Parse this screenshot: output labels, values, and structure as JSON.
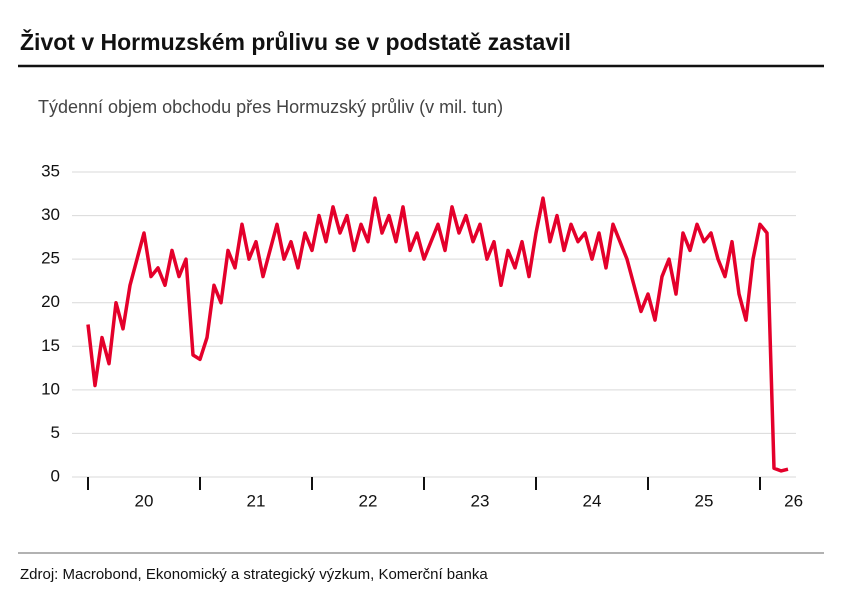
{
  "chart_data": {
    "type": "line",
    "title": "Život v Hormuzském průlivu se v podstatě zastavil",
    "subtitle": "Týdenní objem obchodu přes Hormuzský průliv (v mil. tun)",
    "source": "Zdroj: Macrobond, Ekonomický a strategický výzkum, Komerční banka",
    "x": [
      2020,
      2020.0625,
      2020.125,
      2020.1875,
      2020.25,
      2020.3125,
      2020.375,
      2020.4375,
      2020.5,
      2020.5625,
      2020.625,
      2020.6875,
      2020.75,
      2020.8125,
      2020.875,
      2020.9375,
      2021,
      2021.0625,
      2021.125,
      2021.1875,
      2021.25,
      2021.3125,
      2021.375,
      2021.4375,
      2021.5,
      2021.5625,
      2021.625,
      2021.6875,
      2021.75,
      2021.8125,
      2021.875,
      2021.9375,
      2022,
      2022.0625,
      2022.125,
      2022.1875,
      2022.25,
      2022.3125,
      2022.375,
      2022.4375,
      2022.5,
      2022.5625,
      2022.625,
      2022.6875,
      2022.75,
      2022.8125,
      2022.875,
      2022.9375,
      2023,
      2023.0625,
      2023.125,
      2023.1875,
      2023.25,
      2023.3125,
      2023.375,
      2023.4375,
      2023.5,
      2023.5625,
      2023.625,
      2023.6875,
      2023.75,
      2023.8125,
      2023.875,
      2023.9375,
      2024,
      2024.0625,
      2024.125,
      2024.1875,
      2024.25,
      2024.3125,
      2024.375,
      2024.4375,
      2024.5,
      2024.5625,
      2024.625,
      2024.6875,
      2024.75,
      2024.8125,
      2024.875,
      2024.9375,
      2025,
      2025.0625,
      2025.125,
      2025.1875,
      2025.25,
      2025.3125,
      2025.375,
      2025.4375,
      2025.5,
      2025.5625,
      2025.625,
      2025.6875,
      2025.75,
      2025.8125,
      2025.875,
      2025.9375,
      2026,
      2026.0625,
      2026.125,
      2026.1875,
      2026.25
    ],
    "series": [
      {
        "color": "#e4002b",
        "values": [
          17.5,
          10.5,
          16,
          13,
          20,
          17,
          22,
          25,
          28,
          23,
          24,
          22,
          26,
          23,
          25,
          14,
          13.5,
          16,
          22,
          20,
          26,
          24,
          29,
          25,
          27,
          23,
          26,
          29,
          25,
          27,
          24,
          28,
          26,
          30,
          27,
          31,
          28,
          30,
          26,
          29,
          27,
          32,
          28,
          30,
          27,
          31,
          26,
          28,
          25,
          27,
          29,
          26,
          31,
          28,
          30,
          27,
          29,
          25,
          27,
          22,
          26,
          24,
          27,
          23,
          28,
          32,
          27,
          30,
          26,
          29,
          27,
          28,
          25,
          28,
          24,
          29,
          27,
          25,
          22,
          19,
          21,
          18,
          23,
          25,
          21,
          28,
          26,
          29,
          27,
          28,
          25,
          23,
          27,
          21,
          18,
          25,
          29,
          28,
          1,
          0.7,
          0.9
        ]
      }
    ],
    "xlim": [
      2020,
      2026.5
    ],
    "xtick_marks": [
      2020,
      2021,
      2022,
      2023,
      2024,
      2025,
      2026
    ],
    "xticks": [
      {
        "value": 2020.5,
        "label": "20"
      },
      {
        "value": 2021.5,
        "label": "21"
      },
      {
        "value": 2022.5,
        "label": "22"
      },
      {
        "value": 2023.5,
        "label": "23"
      },
      {
        "value": 2024.5,
        "label": "24"
      },
      {
        "value": 2025.5,
        "label": "25"
      },
      {
        "value": 2026.3,
        "label": "26"
      }
    ],
    "ylim": [
      0,
      35
    ],
    "yticks": [
      0,
      5,
      10,
      15,
      20,
      25,
      30,
      35
    ],
    "grid": true
  }
}
